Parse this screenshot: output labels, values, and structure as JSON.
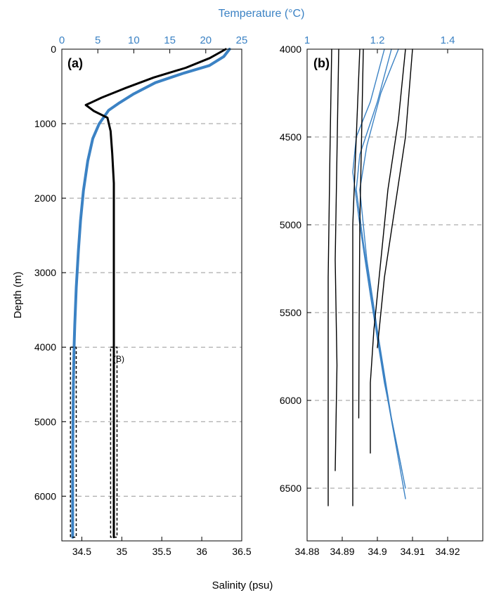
{
  "figure": {
    "top_axis_title": "Temperature (°C)",
    "bottom_axis_title": "Salinity (psu)",
    "y_axis_title": "Depth (m)"
  },
  "colors": {
    "temperature": "#3b82c4",
    "salinity": "#000000",
    "grid": "#999999"
  },
  "chart_data": [
    {
      "type": "line",
      "panel_label": "(a)",
      "box_label": "(B)",
      "ylabel": "Depth (m)",
      "y_inverted": true,
      "ylim": [
        0,
        6600
      ],
      "y_ticks": [
        "0",
        "1000",
        "2000",
        "3000",
        "4000",
        "5000",
        "6000"
      ],
      "x_bottom": {
        "label": "Salinity (psu)",
        "lim": [
          34.25,
          36.5
        ],
        "ticks": [
          "34.5",
          "35",
          "35.5",
          "36",
          "36.5"
        ]
      },
      "x_top": {
        "label": "Temperature (°C)",
        "lim": [
          0,
          25
        ],
        "ticks": [
          "0",
          "5",
          "10",
          "15",
          "20",
          "25"
        ]
      },
      "grid": "horizontal dashed",
      "series": [
        {
          "axis": "temperature",
          "points": [
            [
              23.3,
              0
            ],
            [
              22.5,
              100
            ],
            [
              20.5,
              220
            ],
            [
              17,
              320
            ],
            [
              13,
              450
            ],
            [
              10,
              600
            ],
            [
              8,
              720
            ],
            [
              6.5,
              820
            ],
            [
              5.2,
              1000
            ],
            [
              4.3,
              1200
            ],
            [
              3.6,
              1500
            ],
            [
              3,
              1900
            ],
            [
              2.6,
              2300
            ],
            [
              2.3,
              2700
            ],
            [
              2,
              3200
            ],
            [
              1.8,
              3700
            ],
            [
              1.7,
              4000
            ],
            [
              1.6,
              4500
            ],
            [
              1.55,
              5000
            ],
            [
              1.5,
              5500
            ],
            [
              1.5,
              6000
            ],
            [
              1.5,
              6550
            ]
          ]
        },
        {
          "axis": "salinity",
          "points": [
            [
              36.3,
              0
            ],
            [
              36.1,
              120
            ],
            [
              35.8,
              250
            ],
            [
              35.4,
              380
            ],
            [
              35.05,
              520
            ],
            [
              34.75,
              650
            ],
            [
              34.55,
              750
            ],
            [
              34.65,
              830
            ],
            [
              34.82,
              920
            ],
            [
              34.86,
              1100
            ],
            [
              34.88,
              1400
            ],
            [
              34.9,
              1800
            ],
            [
              34.9,
              2200
            ],
            [
              34.9,
              3000
            ],
            [
              34.9,
              4000
            ],
            [
              34.9,
              5000
            ],
            [
              34.9,
              6000
            ],
            [
              34.9,
              6550
            ]
          ]
        }
      ]
    },
    {
      "type": "line",
      "panel_label": "(b)",
      "ylim": [
        4000,
        6800
      ],
      "y_inverted": true,
      "y_ticks": [
        "4000",
        "4500",
        "5000",
        "5500",
        "6000",
        "6500"
      ],
      "x_bottom": {
        "lim": [
          34.88,
          34.93
        ],
        "ticks": [
          "34.88",
          "34.89",
          "34.9",
          "34.91",
          "34.92"
        ]
      },
      "x_top": {
        "lim": [
          1.0,
          1.5
        ],
        "ticks": [
          "1",
          "1.2",
          "1.4"
        ]
      },
      "grid": "horizontal dashed",
      "series": [
        {
          "axis": "temperature",
          "points": [
            [
              1.24,
              4000
            ],
            [
              1.2,
              4300
            ],
            [
              1.15,
              4600
            ],
            [
              1.14,
              4800
            ],
            [
              1.16,
              5100
            ],
            [
              1.19,
              5500
            ],
            [
              1.23,
              6000
            ],
            [
              1.28,
              6560
            ]
          ]
        },
        {
          "axis": "temperature",
          "points": [
            [
              1.22,
              4000
            ],
            [
              1.18,
              4300
            ],
            [
              1.14,
              4500
            ],
            [
              1.13,
              4700
            ],
            [
              1.15,
              5000
            ],
            [
              1.18,
              5400
            ],
            [
              1.22,
              5900
            ],
            [
              1.27,
              6400
            ]
          ]
        },
        {
          "axis": "temperature",
          "points": [
            [
              1.26,
              4000
            ],
            [
              1.21,
              4250
            ],
            [
              1.17,
              4550
            ],
            [
              1.15,
              4800
            ],
            [
              1.17,
              5200
            ],
            [
              1.2,
              5600
            ],
            [
              1.24,
              6100
            ],
            [
              1.28,
              6500
            ]
          ]
        },
        {
          "axis": "salinity",
          "points": [
            [
              34.887,
              4000
            ],
            [
              34.8865,
              4600
            ],
            [
              34.886,
              5300
            ],
            [
              34.886,
              6000
            ],
            [
              34.886,
              6600
            ]
          ]
        },
        {
          "axis": "salinity",
          "points": [
            [
              34.889,
              4000
            ],
            [
              34.8885,
              4600
            ],
            [
              34.888,
              5200
            ],
            [
              34.8885,
              5800
            ],
            [
              34.888,
              6400
            ]
          ]
        },
        {
          "axis": "salinity",
          "points": [
            [
              34.895,
              4000
            ],
            [
              34.894,
              4500
            ],
            [
              34.893,
              5000
            ],
            [
              34.893,
              5600
            ],
            [
              34.893,
              6200
            ],
            [
              34.893,
              6600
            ]
          ]
        },
        {
          "axis": "salinity",
          "points": [
            [
              34.896,
              4000
            ],
            [
              34.8955,
              4500
            ],
            [
              34.895,
              5000
            ],
            [
              34.8948,
              5600
            ],
            [
              34.8947,
              6100
            ]
          ]
        },
        {
          "axis": "salinity",
          "points": [
            [
              34.908,
              4000
            ],
            [
              34.906,
              4400
            ],
            [
              34.903,
              4800
            ],
            [
              34.901,
              5200
            ],
            [
              34.899,
              5600
            ],
            [
              34.898,
              5900
            ],
            [
              34.898,
              6300
            ]
          ]
        },
        {
          "axis": "salinity",
          "points": [
            [
              34.91,
              4000
            ],
            [
              34.908,
              4500
            ],
            [
              34.905,
              4900
            ],
            [
              34.902,
              5300
            ],
            [
              34.9,
              5700
            ]
          ]
        }
      ]
    }
  ]
}
